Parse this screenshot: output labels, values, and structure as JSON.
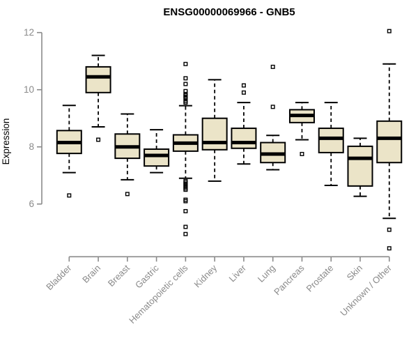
{
  "chart_data": {
    "type": "boxplot",
    "title": "ENSG00000069966 - GNB5",
    "ylabel": "Expression",
    "xlabel": "",
    "ylim": [
      6,
      12
    ],
    "yticks": [
      6,
      8,
      10,
      12
    ],
    "grid": false,
    "legend": "none",
    "categories": [
      "Bladder",
      "Brain",
      "Breast",
      "Gastric",
      "Hematopoietic cells",
      "Kidney",
      "Liver",
      "Lung",
      "Pancreas",
      "Prostate",
      "Skin",
      "Unknown / Other"
    ],
    "boxes": [
      {
        "category": "Bladder",
        "low": 7.1,
        "q1": 7.77,
        "median": 8.15,
        "q3": 8.57,
        "high": 9.45,
        "outliers": [
          6.3
        ]
      },
      {
        "category": "Brain",
        "low": 8.7,
        "q1": 9.9,
        "median": 10.45,
        "q3": 10.8,
        "high": 11.2,
        "outliers": [
          8.25
        ]
      },
      {
        "category": "Breast",
        "low": 6.85,
        "q1": 7.6,
        "median": 8.0,
        "q3": 8.45,
        "high": 9.15,
        "outliers": [
          6.35
        ]
      },
      {
        "category": "Gastric",
        "low": 7.1,
        "q1": 7.33,
        "median": 7.7,
        "q3": 7.92,
        "high": 8.6,
        "outliers": []
      },
      {
        "category": "Hematopoietic cells",
        "low": 6.9,
        "q1": 7.85,
        "median": 8.13,
        "q3": 8.42,
        "high": 9.44,
        "outliers": [
          10.9,
          10.4,
          10.2,
          9.95,
          9.85,
          9.8,
          9.75,
          9.7,
          9.6,
          9.55,
          6.8,
          6.75,
          6.7,
          6.65,
          6.6,
          6.55,
          6.5,
          6.15,
          6.1,
          5.75,
          5.2,
          4.95
        ]
      },
      {
        "category": "Kidney",
        "low": 6.8,
        "q1": 7.9,
        "median": 8.15,
        "q3": 9.0,
        "high": 10.35,
        "outliers": []
      },
      {
        "category": "Liver",
        "low": 7.4,
        "q1": 7.95,
        "median": 8.15,
        "q3": 8.65,
        "high": 9.55,
        "outliers": [
          10.15,
          9.9
        ]
      },
      {
        "category": "Lung",
        "low": 7.2,
        "q1": 7.45,
        "median": 7.75,
        "q3": 8.15,
        "high": 8.4,
        "outliers": [
          10.8,
          9.4
        ]
      },
      {
        "category": "Pancreas",
        "low": 8.25,
        "q1": 8.85,
        "median": 9.1,
        "q3": 9.3,
        "high": 9.55,
        "outliers": [
          7.75
        ]
      },
      {
        "category": "Prostate",
        "low": 6.65,
        "q1": 7.8,
        "median": 8.3,
        "q3": 8.65,
        "high": 9.55,
        "outliers": []
      },
      {
        "category": "Skin",
        "low": 6.27,
        "q1": 6.63,
        "median": 7.6,
        "q3": 8.02,
        "high": 8.3,
        "outliers": []
      },
      {
        "category": "Unknown / Other",
        "low": 5.5,
        "q1": 7.45,
        "median": 8.3,
        "q3": 8.9,
        "high": 10.9,
        "outliers": [
          12.05,
          5.1,
          4.45
        ]
      }
    ],
    "colors": {
      "box_fill": "#EBE4C8",
      "box_stroke": "#000000",
      "median": "#000000",
      "whisker": "#000000",
      "axis": "#8A8A8A",
      "tick_label": "#8A8A8A",
      "title": "#000000",
      "background": "#FFFFFF"
    }
  }
}
